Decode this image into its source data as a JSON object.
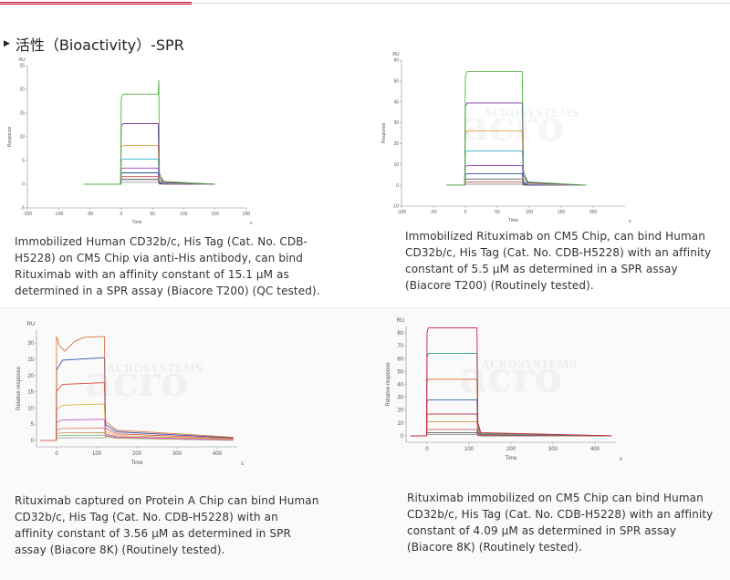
{
  "header": {
    "title": "活性（Bioactivity）-SPR"
  },
  "captions": [
    "Immobilized Human CD32b/c, His Tag (Cat. No. CDB-H5228) on CM5 Chip via anti-His antibody, can bind Rituximab with an affinity constant of 15.1 μM as determined in a SPR assay (Biacore T200) (QC tested).",
    "Immobilized Rituximab on CM5 Chip, can bind Human CD32b/c, His Tag (Cat. No. CDB-H5228) with an affinity constant of 5.5 μM as determined in a SPR assay (Biacore T200) (Routinely tested).",
    "Rituximab captured on Protein A Chip can bind Human CD32b/c, His Tag (Cat. No. CDB-H5228) with an affinity constant of 3.56 μM as determined in SPR assay (Biacore 8K) (Routinely tested).",
    "Rituximab immobilized on CM5 Chip can bind Human CD32b/c, His Tag (Cat. No. CDB-H5228) with an affinity constant of 4.09 μM as determined in SPR assay (Biacore 8K) (Routinely tested)."
  ],
  "watermark": {
    "brand": "ACROSYSTEMS",
    "logo": "acro"
  },
  "colors": {
    "accent": "#c8102e"
  },
  "chart_data": [
    {
      "type": "line",
      "title": "",
      "xlabel": "Time",
      "ylabel": "Response",
      "unit_x": "s",
      "unit_y": "RU",
      "xlim": [
        -150,
        200
      ],
      "ylim": [
        -5,
        25
      ],
      "xticks": [
        -150,
        -100,
        -50,
        0,
        50,
        100,
        150,
        200
      ],
      "yticks": [
        -5,
        0,
        5,
        10,
        15,
        20,
        25
      ],
      "grid": false,
      "sensorgram": {
        "inject_start": 0,
        "inject_end": 60,
        "baseline_from": -60,
        "end": 150,
        "spike_at_inject": true
      },
      "series": [
        {
          "name": "c1",
          "color": "#9a9a9a",
          "plateau": 0.4
        },
        {
          "name": "c2",
          "color": "#333333",
          "plateau": 1.0
        },
        {
          "name": "c3",
          "color": "#c0504d",
          "plateau": 1.6
        },
        {
          "name": "c4",
          "color": "#2f4f8f",
          "plateau": 2.4
        },
        {
          "name": "c5",
          "color": "#a040c0",
          "plateau": 3.4
        },
        {
          "name": "c6",
          "color": "#30b0d0",
          "plateau": 5.3
        },
        {
          "name": "c7",
          "color": "#e0a040",
          "plateau": 8.2
        },
        {
          "name": "c8",
          "color": "#7030a0",
          "plateau": 12.8
        },
        {
          "name": "c9",
          "color": "#50b040",
          "plateau": 19.0
        }
      ]
    },
    {
      "type": "line",
      "title": "",
      "xlabel": "Time",
      "ylabel": "Response",
      "unit_x": "s",
      "unit_y": "RU",
      "xlim": [
        -100,
        250
      ],
      "ylim": [
        -10,
        60
      ],
      "xticks": [
        -100,
        -50,
        0,
        50,
        100,
        150,
        200
      ],
      "yticks": [
        -10,
        0,
        10,
        20,
        30,
        40,
        50,
        60
      ],
      "grid": false,
      "sensorgram": {
        "inject_start": 0,
        "inject_end": 90,
        "baseline_from": -30,
        "end": 190,
        "spike_at_inject": false
      },
      "series": [
        {
          "name": "c1",
          "color": "#9a9a9a",
          "plateau": 0.5
        },
        {
          "name": "c2",
          "color": "#c0504d",
          "plateau": 1.5
        },
        {
          "name": "c3",
          "color": "#555555",
          "plateau": 3.0
        },
        {
          "name": "c4",
          "color": "#2f4f8f",
          "plateau": 5.5
        },
        {
          "name": "c5",
          "color": "#a040c0",
          "plateau": 9.5
        },
        {
          "name": "c6",
          "color": "#30b0d0",
          "plateau": 16.5
        },
        {
          "name": "c7",
          "color": "#e0a040",
          "plateau": 26.0
        },
        {
          "name": "c8",
          "color": "#7030a0",
          "plateau": 39.5
        },
        {
          "name": "c9",
          "color": "#50b040",
          "plateau": 54.5
        }
      ]
    },
    {
      "type": "line",
      "title": "",
      "xlabel": "Time",
      "ylabel": "Relative response",
      "unit_x": "s",
      "unit_y": "RU",
      "xlim": [
        -50,
        450
      ],
      "ylim": [
        -2,
        34
      ],
      "xticks": [
        0,
        100,
        200,
        300,
        400
      ],
      "yticks": [
        0,
        5,
        10,
        15,
        20,
        25,
        30
      ],
      "grid": false,
      "sensorgram": {
        "inject_start": 0,
        "inject_end": 120,
        "baseline_from": -40,
        "end": 440,
        "spike_at_inject": false,
        "slow_dissociation": true
      },
      "series": [
        {
          "name": "c1",
          "color": "#a0a0a0",
          "plateau": 0.8
        },
        {
          "name": "c2",
          "color": "#80c080",
          "plateau": 1.6
        },
        {
          "name": "c3",
          "color": "#c0a060",
          "plateau": 2.4
        },
        {
          "name": "c4",
          "color": "#e08080",
          "plateau": 3.8
        },
        {
          "name": "c5",
          "color": "#c060d0",
          "plateau": 6.5
        },
        {
          "name": "c6",
          "color": "#e0b040",
          "plateau": 11.2
        },
        {
          "name": "c7",
          "color": "#e05040",
          "plateau": 17.8
        },
        {
          "name": "c8",
          "color": "#3050b0",
          "plateau": 25.5
        },
        {
          "name": "c9",
          "color": "#e07040",
          "plateau": 32.0
        }
      ]
    },
    {
      "type": "line",
      "title": "",
      "xlabel": "Time",
      "ylabel": "Relative response",
      "unit_x": "s",
      "unit_y": "RU",
      "xlim": [
        -50,
        450
      ],
      "ylim": [
        -5,
        85
      ],
      "xticks": [
        0,
        100,
        200,
        300,
        400
      ],
      "yticks": [
        0,
        10,
        20,
        30,
        40,
        50,
        60,
        70,
        80
      ],
      "grid": false,
      "sensorgram": {
        "inject_start": 0,
        "inject_end": 120,
        "baseline_from": -40,
        "end": 440,
        "spike_at_inject": false
      },
      "series": [
        {
          "name": "c1",
          "color": "#9a9a9a",
          "plateau": 1.0
        },
        {
          "name": "c2",
          "color": "#555555",
          "plateau": 2.5
        },
        {
          "name": "c3",
          "color": "#c06060",
          "plateau": 5.0
        },
        {
          "name": "c4",
          "color": "#d09050",
          "plateau": 11.0
        },
        {
          "name": "c5",
          "color": "#c04050",
          "plateau": 17.0
        },
        {
          "name": "c6",
          "color": "#3060b0",
          "plateau": 28.0
        },
        {
          "name": "c7",
          "color": "#e07030",
          "plateau": 44.0
        },
        {
          "name": "c8",
          "color": "#20a070",
          "plateau": 64.0
        },
        {
          "name": "c9",
          "color": "#d02040",
          "plateau": 84.0
        }
      ]
    }
  ]
}
